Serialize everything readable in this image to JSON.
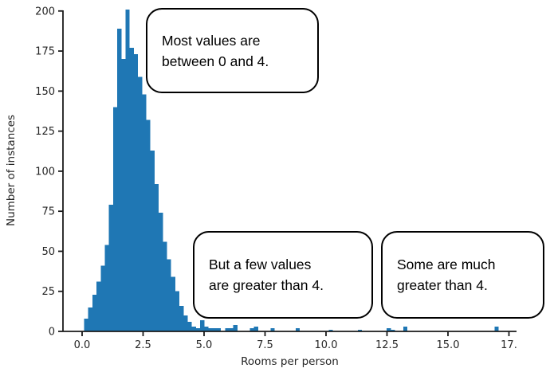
{
  "figure": {
    "xlabel": "Rooms per person",
    "ylabel": "Number of instances",
    "x_tick_labels": [
      "0.0",
      "2.5",
      "5.0",
      "7.5",
      "10.0",
      "12.5",
      "15.0",
      "17."
    ],
    "y_tick_labels": [
      "0",
      "25",
      "50",
      "75",
      "100",
      "125",
      "150",
      "175",
      "200"
    ],
    "bar_color": "#1f77b4",
    "axis_color": "#1a1a1a",
    "text_color": "#262626"
  },
  "annotations": [
    {
      "line1": "Most values are",
      "line2": "between 0 and 4."
    },
    {
      "line1": "But a few values",
      "line2": "are greater than 4."
    },
    {
      "line1": "Some are much",
      "line2": "greater than 4."
    }
  ],
  "chart_data": {
    "type": "bar",
    "variant": "histogram",
    "title": "",
    "xlabel": "Rooms per person",
    "ylabel": "Number of instances",
    "xlim": [
      -0.8,
      17.8
    ],
    "ylim": [
      0,
      202
    ],
    "grid": false,
    "legend": "none",
    "x_tick_values": [
      0,
      2.5,
      5,
      7.5,
      10,
      12.5,
      15,
      17.5
    ],
    "y_tick_values": [
      0,
      25,
      50,
      75,
      100,
      125,
      150,
      175,
      200
    ],
    "bin_width": 0.17,
    "bins": [
      [
        0.08,
        8
      ],
      [
        0.25,
        15
      ],
      [
        0.42,
        23
      ],
      [
        0.59,
        31
      ],
      [
        0.76,
        41
      ],
      [
        0.93,
        54
      ],
      [
        1.1,
        79
      ],
      [
        1.27,
        140
      ],
      [
        1.44,
        189
      ],
      [
        1.61,
        170
      ],
      [
        1.78,
        201
      ],
      [
        1.95,
        177
      ],
      [
        2.12,
        173
      ],
      [
        2.29,
        159
      ],
      [
        2.46,
        148
      ],
      [
        2.63,
        132
      ],
      [
        2.8,
        113
      ],
      [
        2.97,
        92
      ],
      [
        3.14,
        74
      ],
      [
        3.31,
        56
      ],
      [
        3.48,
        45
      ],
      [
        3.65,
        34
      ],
      [
        3.82,
        25
      ],
      [
        3.99,
        16
      ],
      [
        4.16,
        10
      ],
      [
        4.33,
        6
      ],
      [
        4.5,
        3
      ],
      [
        4.67,
        2
      ],
      [
        4.84,
        7
      ],
      [
        5.01,
        3
      ],
      [
        5.18,
        2
      ],
      [
        5.35,
        2
      ],
      [
        5.52,
        2
      ],
      [
        5.86,
        2
      ],
      [
        6.03,
        2
      ],
      [
        6.2,
        4
      ],
      [
        6.88,
        2
      ],
      [
        7.05,
        3
      ],
      [
        7.73,
        2
      ],
      [
        8.75,
        2
      ],
      [
        10.11,
        1
      ],
      [
        11.3,
        1
      ],
      [
        12.49,
        2
      ],
      [
        12.66,
        1
      ],
      [
        13.17,
        3
      ],
      [
        16.91,
        3
      ]
    ]
  }
}
